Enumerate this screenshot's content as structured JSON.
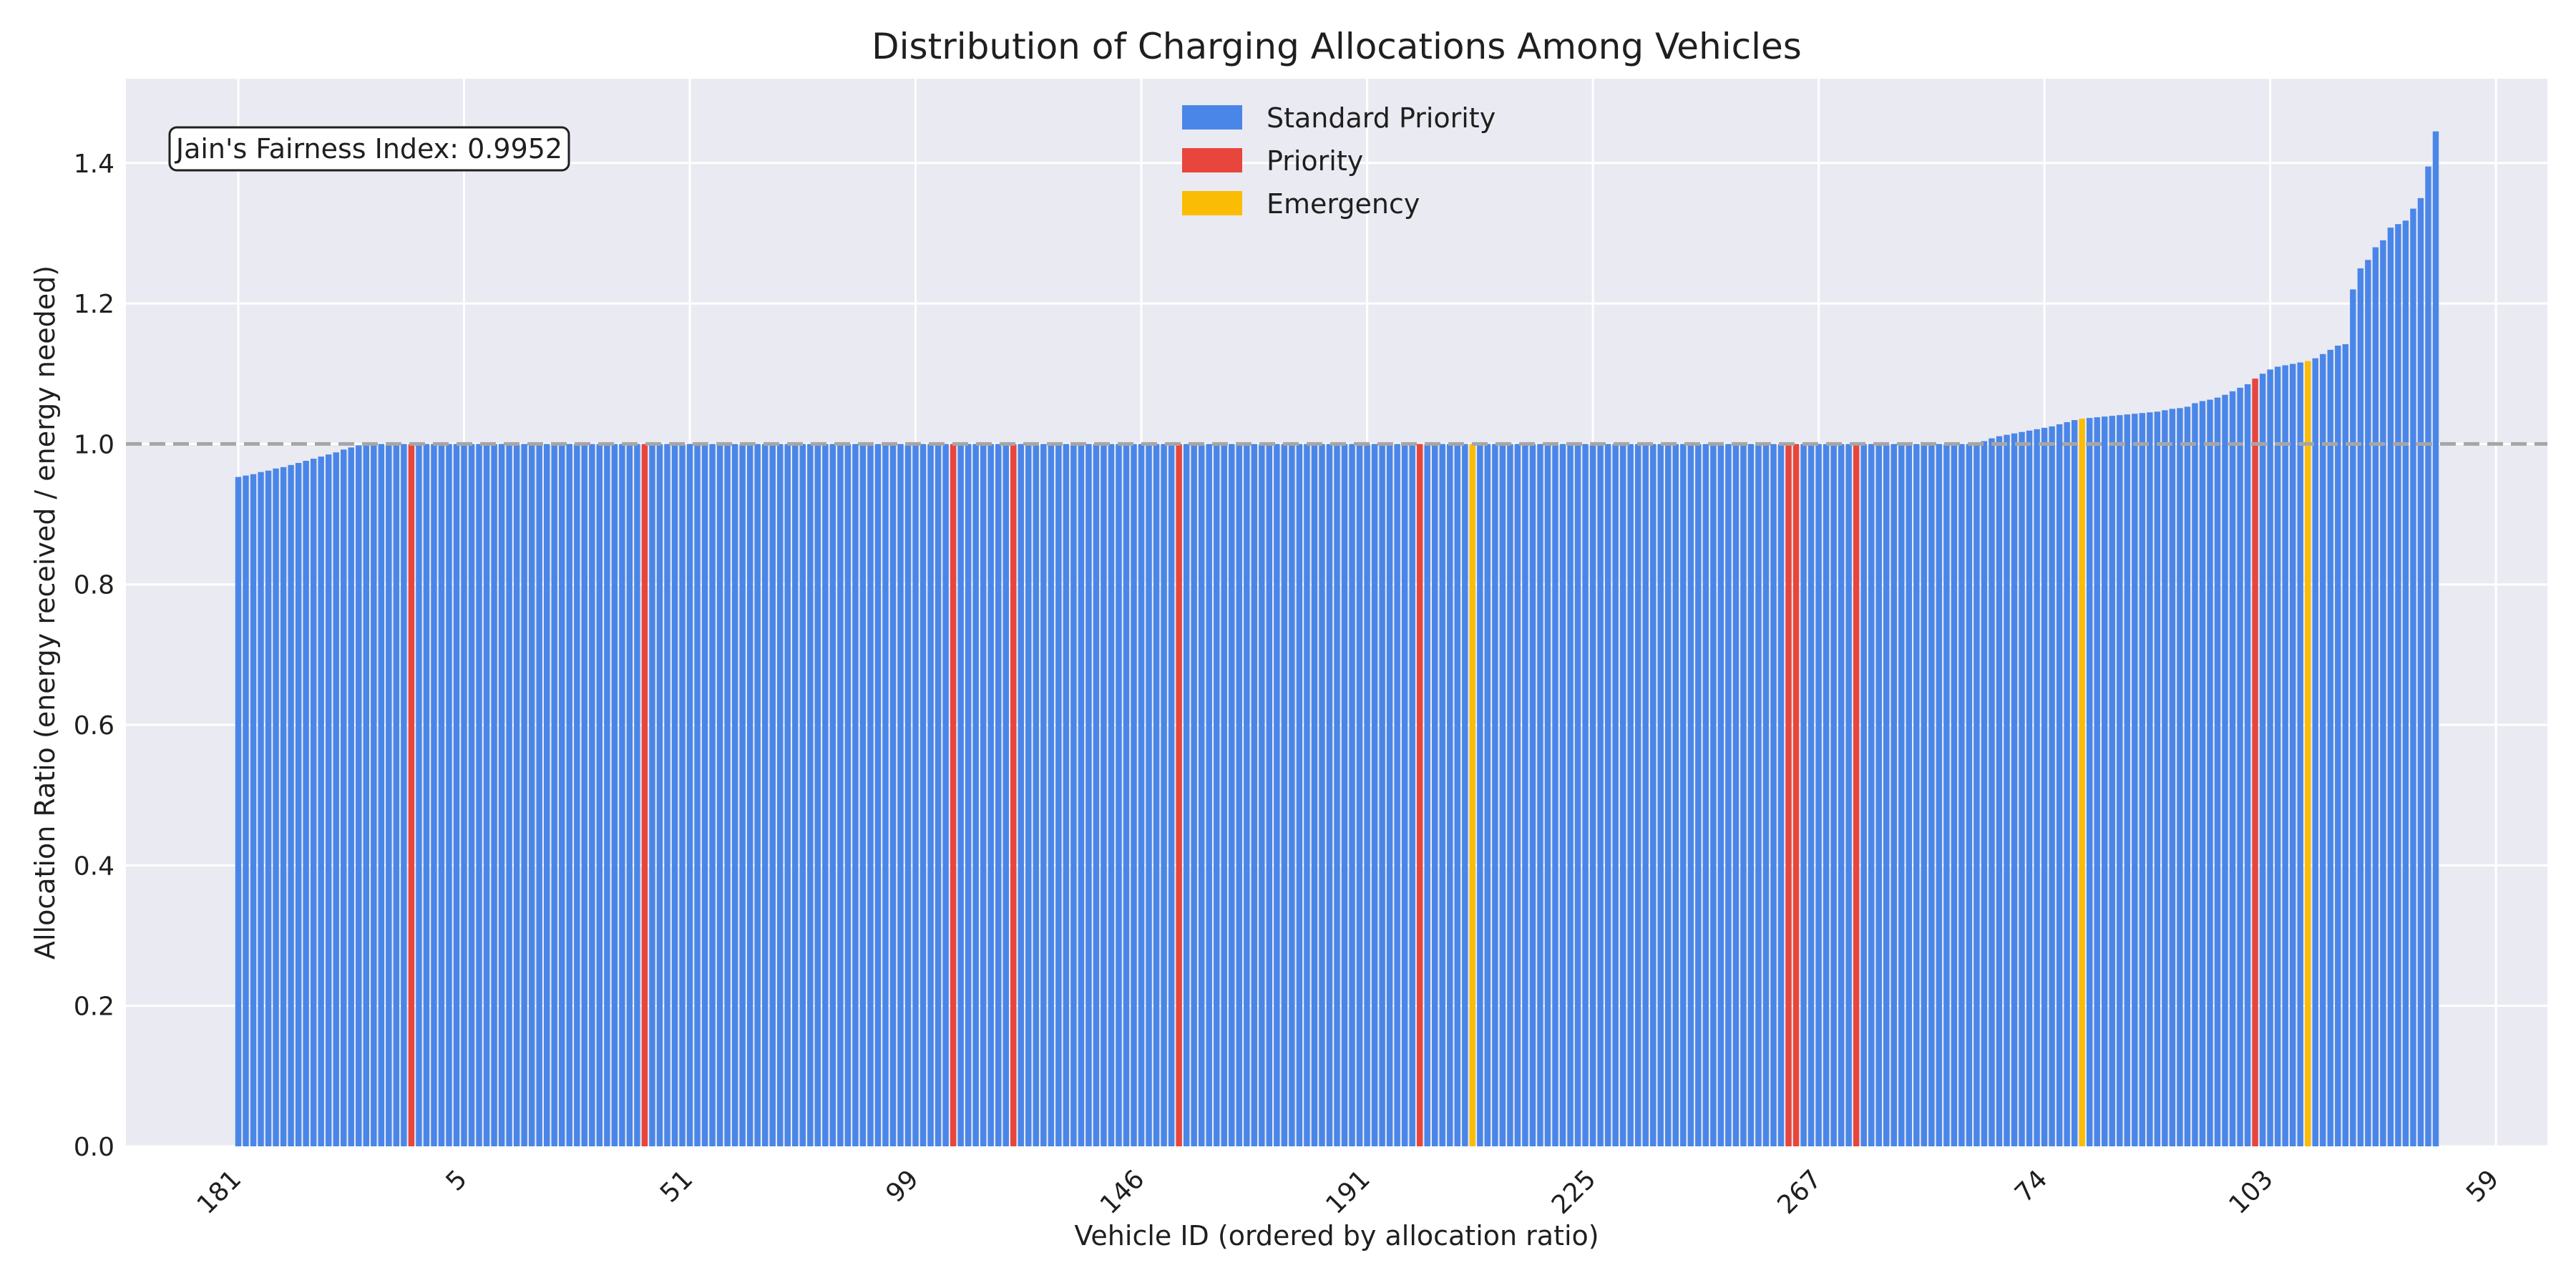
{
  "chart_data": {
    "type": "bar",
    "title": "Distribution of Charging Allocations Among Vehicles",
    "xlabel": "Vehicle ID (ordered by allocation ratio)",
    "ylabel": "Allocation Ratio (energy received / energy needed)",
    "ylim": [
      0,
      1.52
    ],
    "yticks": [
      "0.0",
      "0.2",
      "0.4",
      "0.6",
      "0.8",
      "1.0",
      "1.2",
      "1.4"
    ],
    "xtick_labels": [
      "181",
      "5",
      "51",
      "99",
      "146",
      "191",
      "225",
      "267",
      "74",
      "103",
      "59"
    ],
    "bar_count": 300,
    "reference_line": 1.0,
    "annotation": "Jain's Fairness Index: 0.9952",
    "grid": true,
    "legend_position": "upper center",
    "legend": [
      {
        "key": "standard",
        "label": "Standard Priority",
        "color": "#4a86e8"
      },
      {
        "key": "priority",
        "label": "Priority",
        "color": "#e8453c"
      },
      {
        "key": "emergency",
        "label": "Emergency",
        "color": "#fbbc05"
      }
    ],
    "values": [
      0.953,
      0.955,
      0.957,
      0.96,
      0.962,
      0.965,
      0.967,
      0.97,
      0.973,
      0.976,
      0.979,
      0.982,
      0.985,
      0.988,
      0.992,
      0.995,
      0.998,
      1.0,
      1.0,
      1.0,
      1.0,
      1.0,
      1.0,
      1.0,
      1.0,
      1.0,
      1.0,
      1.0,
      1.0,
      1.0,
      1.0,
      1.0,
      1.0,
      1.0,
      1.0,
      1.0,
      1.0,
      1.0,
      1.0,
      1.0,
      1.0,
      1.0,
      1.0,
      1.0,
      1.0,
      1.0,
      1.0,
      1.0,
      1.0,
      1.0,
      1.0,
      1.0,
      1.0,
      1.0,
      1.0,
      1.0,
      1.0,
      1.0,
      1.0,
      1.0,
      1.0,
      1.0,
      1.0,
      1.0,
      1.0,
      1.0,
      1.0,
      1.0,
      1.0,
      1.0,
      1.0,
      1.0,
      1.0,
      1.0,
      1.0,
      1.0,
      1.0,
      1.0,
      1.0,
      1.0,
      1.0,
      1.0,
      1.0,
      1.0,
      1.0,
      1.0,
      1.0,
      1.0,
      1.0,
      1.0,
      1.0,
      1.0,
      1.0,
      1.0,
      1.0,
      1.0,
      1.0,
      1.0,
      1.0,
      1.0,
      1.0,
      1.0,
      1.0,
      1.0,
      1.0,
      1.0,
      1.0,
      1.0,
      1.0,
      1.0,
      1.0,
      1.0,
      1.0,
      1.0,
      1.0,
      1.0,
      1.0,
      1.0,
      1.0,
      1.0,
      1.0,
      1.0,
      1.0,
      1.0,
      1.0,
      1.0,
      1.0,
      1.0,
      1.0,
      1.0,
      1.0,
      1.0,
      1.0,
      1.0,
      1.0,
      1.0,
      1.0,
      1.0,
      1.0,
      1.0,
      1.0,
      1.0,
      1.0,
      1.0,
      1.0,
      1.0,
      1.0,
      1.0,
      1.0,
      1.0,
      1.0,
      1.0,
      1.0,
      1.0,
      1.0,
      1.0,
      1.0,
      1.0,
      1.0,
      1.0,
      1.0,
      1.0,
      1.0,
      1.0,
      1.0,
      1.0,
      1.0,
      1.0,
      1.0,
      1.0,
      1.0,
      1.0,
      1.0,
      1.0,
      1.0,
      1.0,
      1.0,
      1.0,
      1.0,
      1.0,
      1.0,
      1.0,
      1.0,
      1.0,
      1.0,
      1.0,
      1.0,
      1.0,
      1.0,
      1.0,
      1.0,
      1.0,
      1.0,
      1.0,
      1.0,
      1.0,
      1.0,
      1.0,
      1.0,
      1.0,
      1.0,
      1.0,
      1.0,
      1.0,
      1.0,
      1.0,
      1.0,
      1.0,
      1.0,
      1.0,
      1.0,
      1.0,
      1.0,
      1.0,
      1.0,
      1.0,
      1.0,
      1.0,
      1.0,
      1.0,
      1.0,
      1.0,
      1.0,
      1.0,
      1.0,
      1.0,
      1.0,
      1.0,
      1.0,
      1.0,
      1.0,
      1.0,
      1.004,
      1.008,
      1.011,
      1.013,
      1.015,
      1.017,
      1.019,
      1.021,
      1.023,
      1.025,
      1.028,
      1.031,
      1.034,
      1.036,
      1.037,
      1.038,
      1.039,
      1.04,
      1.041,
      1.042,
      1.043,
      1.044,
      1.045,
      1.046,
      1.048,
      1.05,
      1.051,
      1.053,
      1.058,
      1.061,
      1.063,
      1.066,
      1.07,
      1.075,
      1.08,
      1.085,
      1.093,
      1.1,
      1.106,
      1.11,
      1.112,
      1.114,
      1.116,
      1.118,
      1.122,
      1.128,
      1.134,
      1.14,
      1.142,
      1.22,
      1.25,
      1.262,
      1.28,
      1.29,
      1.308,
      1.313,
      1.318,
      1.335,
      1.35,
      1.395,
      1.445
    ],
    "bar_types": {
      "priority": [
        23,
        54,
        95,
        103,
        125,
        157,
        206,
        207,
        215,
        268
      ],
      "emergency": [
        164,
        245,
        275
      ]
    }
  }
}
